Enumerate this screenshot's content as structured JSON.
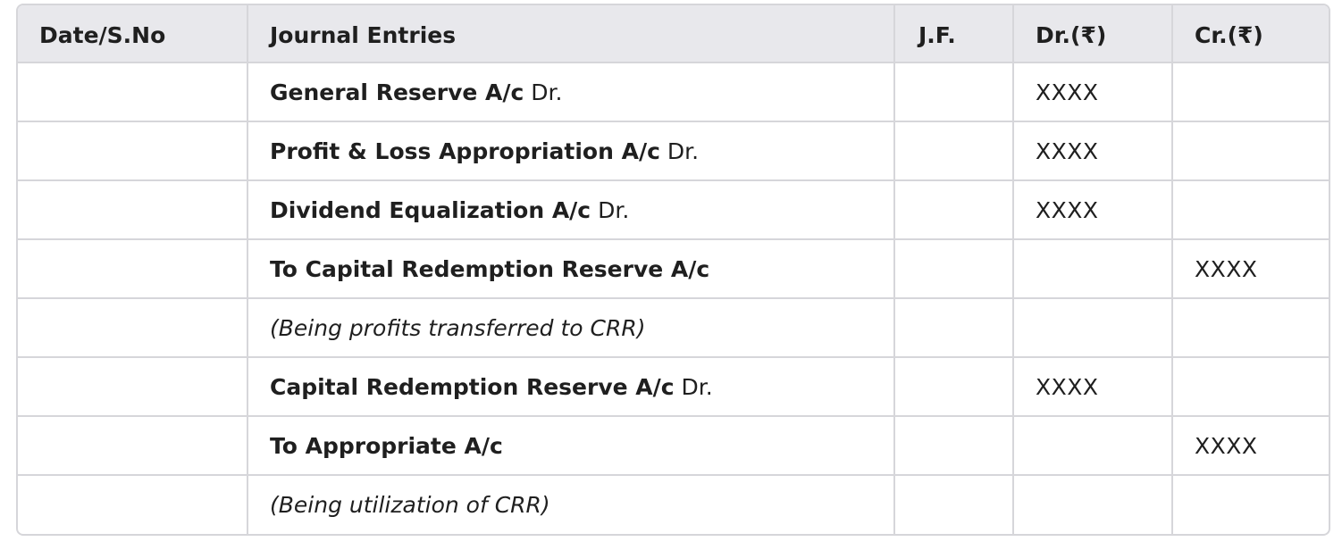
{
  "table": {
    "headers": {
      "date": "Date/S.No",
      "entries": "Journal Entries",
      "jf": "J.F.",
      "dr": "Dr.(₹)",
      "cr": "Cr.(₹)"
    },
    "rows": [
      {
        "date": "",
        "entry": "General Reserve A/c",
        "entry_suffix": " Dr.",
        "narration": "",
        "jf": "",
        "dr": "XXXX",
        "cr": ""
      },
      {
        "date": "",
        "entry": "Profit & Loss Appropriation A/c",
        "entry_suffix": " Dr.",
        "narration": "",
        "jf": "",
        "dr": "XXXX",
        "cr": ""
      },
      {
        "date": "",
        "entry": "Dividend Equalization A/c",
        "entry_suffix": " Dr.",
        "narration": "",
        "jf": "",
        "dr": "XXXX",
        "cr": ""
      },
      {
        "date": "",
        "entry": "To Capital Redemption Reserve A/c",
        "entry_suffix": "",
        "narration": "",
        "jf": "",
        "dr": "",
        "cr": "XXXX"
      },
      {
        "date": "",
        "entry": "",
        "entry_suffix": "",
        "narration": "(Being profits transferred to CRR)",
        "jf": "",
        "dr": "",
        "cr": ""
      },
      {
        "date": "",
        "entry": "Capital Redemption Reserve A/c",
        "entry_suffix": " Dr.",
        "narration": "",
        "jf": "",
        "dr": "XXXX",
        "cr": ""
      },
      {
        "date": "",
        "entry": "To Appropriate A/c",
        "entry_suffix": "",
        "narration": "",
        "jf": "",
        "dr": "",
        "cr": "XXXX"
      },
      {
        "date": "",
        "entry": "",
        "entry_suffix": "",
        "narration": "(Being utilization of CRR)",
        "jf": "",
        "dr": "",
        "cr": ""
      }
    ]
  }
}
